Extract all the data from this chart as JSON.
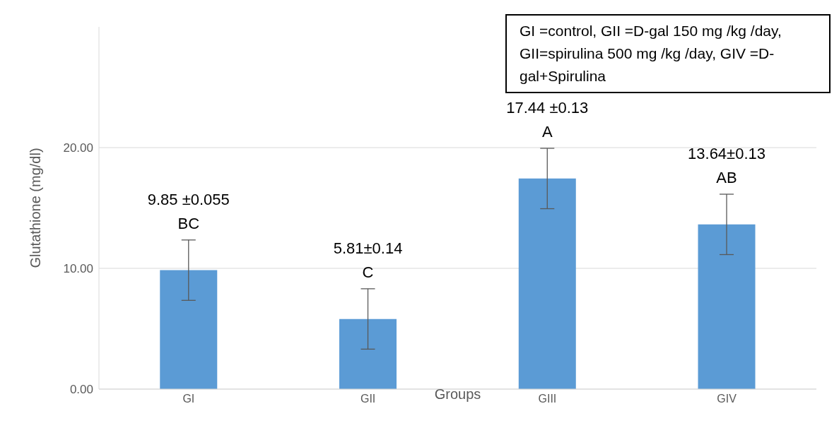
{
  "chart_data": {
    "type": "bar",
    "ylabel": "Glutathione (mg/dl)",
    "xlabel": "Groups",
    "categories": [
      "GI",
      "GII",
      "GIII",
      "GIV"
    ],
    "values": [
      9.85,
      5.81,
      17.44,
      13.64
    ],
    "errors": [
      2.5,
      2.5,
      2.5,
      2.5
    ],
    "value_labels": [
      "9.85 ±0.055 BC",
      "5.81±0.14 C",
      "17.44 ±0.13 A",
      "13.64±0.13 AB"
    ],
    "color": "#5b9bd5",
    "ylim": [
      0,
      30
    ],
    "yticks": [
      {
        "value": 0,
        "label": "0.00"
      },
      {
        "value": 10,
        "label": "10.00"
      },
      {
        "value": 20,
        "label": "20.00"
      }
    ],
    "grid": "y",
    "annotations": [
      "GI =control, GII =D-gal 150 mg /kg /day, GII=spirulina 500 mg /kg /day, GIV =D-gal+Spirulina"
    ]
  }
}
